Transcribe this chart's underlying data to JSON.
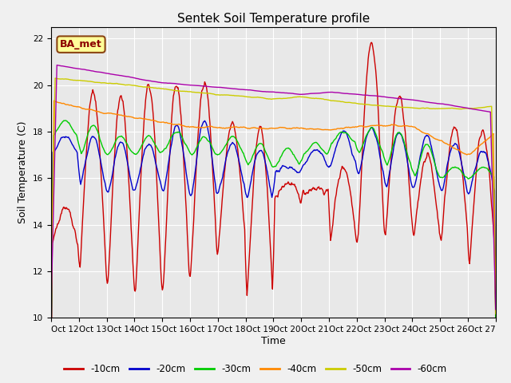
{
  "title": "Sentek Soil Temperature profile",
  "xlabel": "Time",
  "ylabel": "Soil Temperature (C)",
  "ylim": [
    10,
    22.5
  ],
  "yticks": [
    10,
    12,
    14,
    16,
    18,
    20,
    22
  ],
  "annotation_text": "BA_met",
  "annotation_facecolor": "#ffff99",
  "annotation_edgecolor": "#8B4513",
  "x_labels": [
    "Oct 12",
    "Oct 13",
    "Oct 14",
    "Oct 15",
    "Oct 16",
    "Oct 17",
    "Oct 18",
    "Oct 19",
    "Oct 20",
    "Oct 21",
    "Oct 22",
    "Oct 23",
    "Oct 24",
    "Oct 25",
    "Oct 26",
    "Oct 27"
  ],
  "colors": {
    "-10cm": "#cc0000",
    "-20cm": "#0000cc",
    "-30cm": "#00cc00",
    "-40cm": "#ff8800",
    "-50cm": "#cccc00",
    "-60cm": "#aa00aa"
  },
  "linewidth": 1.0,
  "n_days": 16,
  "pts_per_day": 48
}
